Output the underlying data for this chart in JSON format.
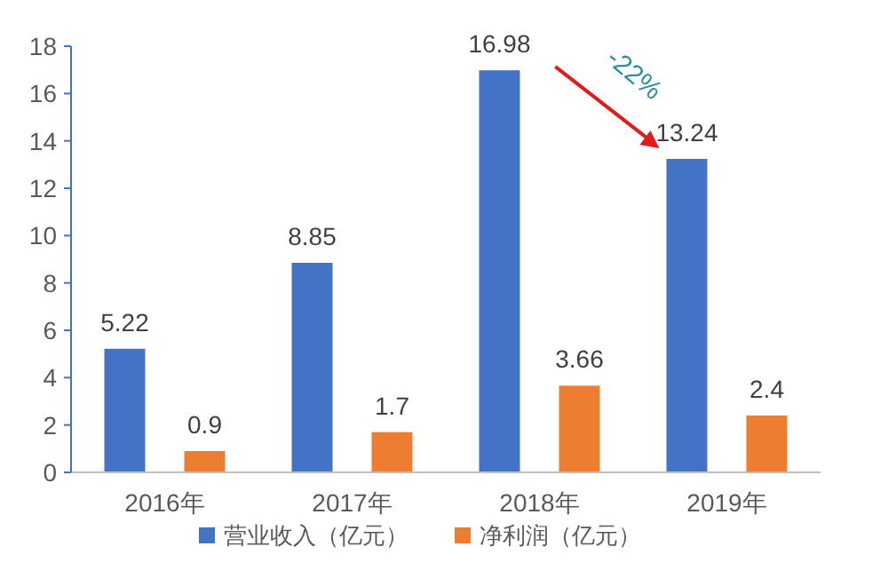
{
  "chart_data": {
    "type": "bar",
    "categories": [
      "2016年",
      "2017年",
      "2018年",
      "2019年"
    ],
    "series": [
      {
        "name": "营业收入（亿元）",
        "color": "#4472c4",
        "values": [
          5.22,
          8.85,
          16.98,
          13.24
        ]
      },
      {
        "name": "净利润（亿元）",
        "color": "#ed7d31",
        "values": [
          0.9,
          1.7,
          3.66,
          2.4
        ]
      }
    ],
    "ylim": [
      0,
      18
    ],
    "yticks": [
      0,
      2,
      4,
      6,
      8,
      10,
      12,
      14,
      16,
      18
    ],
    "data_labels": true,
    "legend": "bottom",
    "grid": false,
    "annotations": [
      "-22%"
    ]
  }
}
